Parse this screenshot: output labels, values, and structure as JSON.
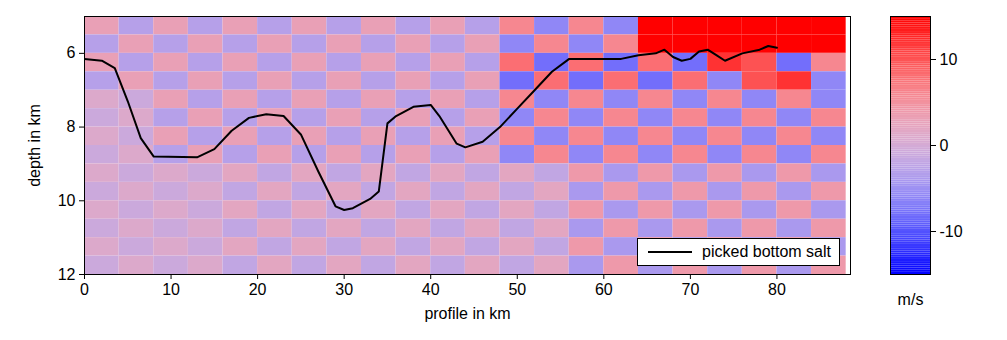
{
  "chart_data": {
    "type": "heatmap",
    "xlabel": "profile in km",
    "ylabel": "depth in km",
    "xlim": [
      0,
      88.5
    ],
    "xticks": [
      0,
      10,
      20,
      30,
      40,
      50,
      60,
      70,
      80
    ],
    "ylim": [
      5,
      12
    ],
    "yticks": [
      6,
      8,
      10,
      12
    ],
    "legend": "lower right",
    "heatmap": {
      "x": [
        2,
        6,
        10,
        14,
        18,
        22,
        26,
        30,
        34,
        38,
        42,
        46,
        50,
        54,
        58,
        62,
        66,
        70,
        74,
        78,
        82,
        86
      ],
      "y": [
        5.25,
        5.75,
        6.25,
        6.75,
        7.25,
        7.75,
        8.25,
        8.75,
        9.25,
        9.75,
        10.25,
        10.75,
        11.25,
        11.75
      ],
      "values": [
        [
          3,
          -3,
          3,
          -3,
          3,
          -3,
          3,
          -3,
          3,
          -3,
          3,
          -3,
          6,
          -6,
          6,
          -6,
          15,
          15,
          15,
          15,
          15,
          15
        ],
        [
          -3,
          3,
          -3,
          3,
          -3,
          3,
          -3,
          3,
          -3,
          3,
          -3,
          3,
          -6,
          6,
          -6,
          6,
          15,
          15,
          15,
          15,
          15,
          15
        ],
        [
          3,
          -3,
          3,
          -3,
          3,
          -3,
          3,
          -3,
          3,
          -3,
          3,
          -3,
          8,
          -8,
          8,
          -8,
          8,
          -8,
          12,
          10,
          -8,
          6
        ],
        [
          -3,
          3,
          -3,
          3,
          -3,
          3,
          -3,
          3,
          -3,
          3,
          -3,
          3,
          -8,
          8,
          -8,
          8,
          -8,
          8,
          -6,
          10,
          12,
          -6
        ],
        [
          1,
          -1,
          3,
          -3,
          3,
          -3,
          3,
          -3,
          3,
          -3,
          3,
          -3,
          6,
          -6,
          6,
          -6,
          6,
          -6,
          6,
          -6,
          6,
          -6
        ],
        [
          -1,
          1,
          -3,
          3,
          -3,
          3,
          -3,
          3,
          -3,
          3,
          -3,
          3,
          -6,
          6,
          -6,
          6,
          -6,
          6,
          -6,
          6,
          -6,
          6
        ],
        [
          1,
          -1,
          3,
          -3,
          3,
          -3,
          3,
          -3,
          3,
          -3,
          3,
          -3,
          6,
          -6,
          6,
          -6,
          6,
          -6,
          6,
          -6,
          6,
          -6
        ],
        [
          -1,
          1,
          -3,
          3,
          -3,
          3,
          -3,
          3,
          -3,
          3,
          -3,
          3,
          -6,
          6,
          -6,
          6,
          -6,
          6,
          -6,
          6,
          -6,
          6
        ],
        [
          1,
          -1,
          1,
          -1,
          2,
          -2,
          2,
          -2,
          2,
          -2,
          2,
          -2,
          2,
          -2,
          4,
          -4,
          4,
          -4,
          4,
          -4,
          4,
          -4
        ],
        [
          -1,
          1,
          -1,
          1,
          -2,
          2,
          -2,
          2,
          -2,
          2,
          -2,
          2,
          -2,
          2,
          -4,
          4,
          -4,
          4,
          -4,
          4,
          -4,
          4
        ],
        [
          1,
          -1,
          1,
          -1,
          2,
          -2,
          2,
          -2,
          2,
          -2,
          2,
          -2,
          2,
          -2,
          4,
          -4,
          4,
          -4,
          4,
          -4,
          4,
          -4
        ],
        [
          -1,
          1,
          -1,
          1,
          -2,
          2,
          -2,
          2,
          -2,
          2,
          -2,
          2,
          -2,
          2,
          -4,
          4,
          -4,
          4,
          -4,
          4,
          -4,
          4
        ],
        [
          1,
          -1,
          1,
          -1,
          2,
          -2,
          2,
          -2,
          2,
          -2,
          2,
          -2,
          2,
          -2,
          4,
          -4,
          4,
          -4,
          4,
          -4,
          4,
          -4
        ],
        [
          -1,
          1,
          -1,
          1,
          -2,
          2,
          -2,
          2,
          -2,
          2,
          -2,
          2,
          -2,
          2,
          -4,
          4,
          -4,
          4,
          -4,
          4,
          -4,
          4
        ]
      ]
    },
    "colorbar": {
      "label": "m/s",
      "range": [
        -15,
        15
      ],
      "ticks": [
        -10,
        0,
        10
      ],
      "colors": [
        "#0000ff",
        "#ffffff",
        "#ff0000"
      ]
    },
    "series": [
      {
        "name": "picked bottom salt",
        "type": "line",
        "color": "#000000",
        "x": [
          0,
          2,
          3.5,
          5,
          6.5,
          8,
          13,
          15,
          17,
          19,
          21,
          23,
          25,
          27,
          29,
          30,
          31,
          33,
          34,
          35,
          36,
          38,
          40,
          41,
          43,
          44,
          46,
          48,
          50,
          52,
          54,
          56,
          60,
          62,
          64,
          66,
          67,
          68,
          69,
          70,
          71,
          72,
          73,
          74,
          76,
          78,
          79,
          80
        ],
        "values": [
          6.15,
          6.2,
          6.4,
          7.3,
          8.3,
          8.8,
          8.82,
          8.6,
          8.1,
          7.75,
          7.65,
          7.7,
          8.2,
          9.2,
          10.15,
          10.25,
          10.2,
          9.95,
          9.75,
          7.9,
          7.7,
          7.45,
          7.4,
          7.7,
          8.45,
          8.55,
          8.4,
          8.0,
          7.5,
          7.0,
          6.5,
          6.15,
          6.15,
          6.15,
          6.05,
          6.0,
          5.9,
          6.1,
          6.2,
          6.15,
          5.95,
          5.9,
          6.05,
          6.2,
          6.0,
          5.9,
          5.8,
          5.85
        ]
      }
    ]
  }
}
